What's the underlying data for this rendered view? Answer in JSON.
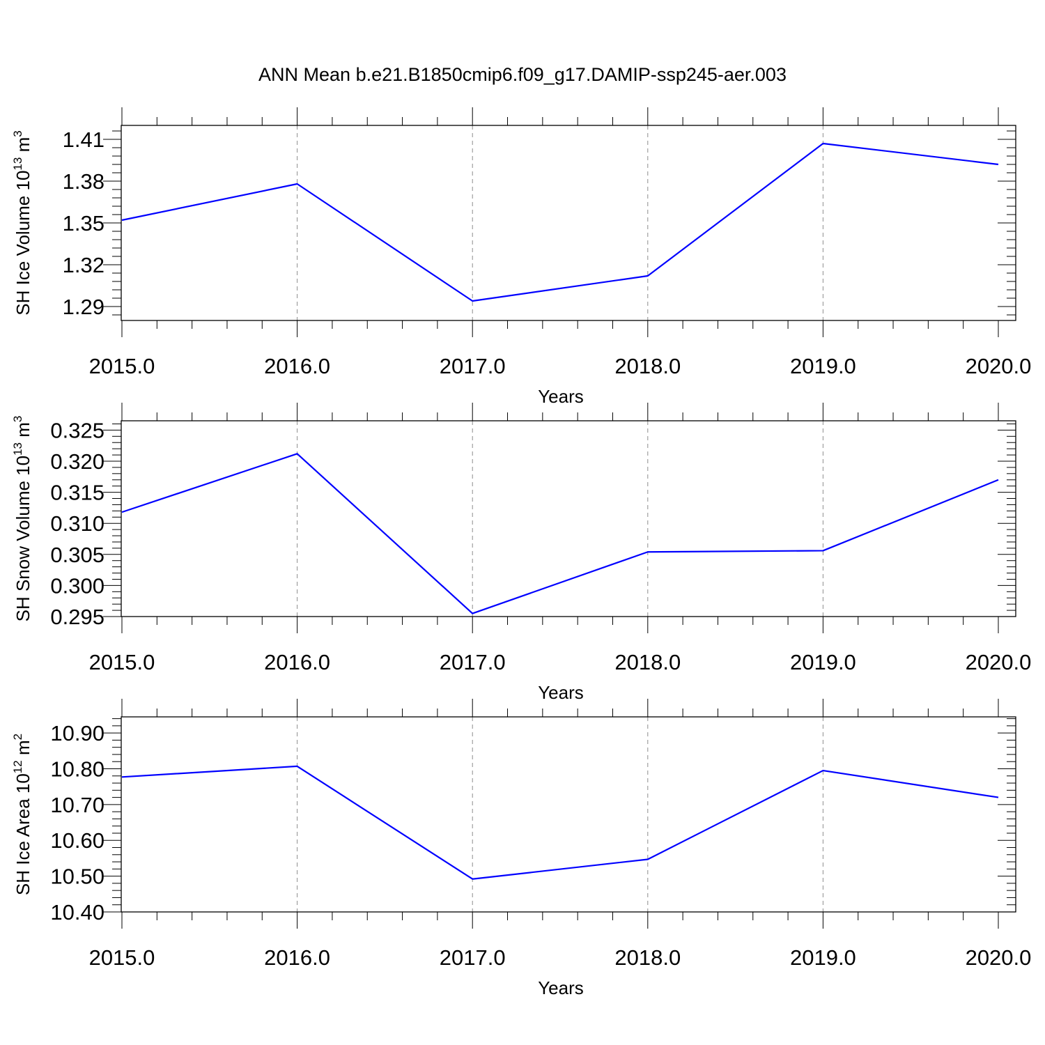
{
  "title": "ANN Mean b.e21.B1850cmip6.f09_g17.DAMIP-ssp245-aer.003",
  "colors": {
    "line": "#0000ff",
    "axis": "#000000",
    "grid": "#8c8c8c"
  },
  "chart_data": [
    {
      "type": "line",
      "title": "ANN Mean b.e21.B1850cmip6.f09_g17.DAMIP-ssp245-aer.003",
      "ylabel": {
        "text": "SH Ice Volume 10",
        "sup1": "13",
        "mid": " m",
        "sup2": "3"
      },
      "xlabel": "Years",
      "x": [
        2015,
        2016,
        2017,
        2018,
        2019,
        2020
      ],
      "series": [
        {
          "values": [
            1.352,
            1.378,
            1.294,
            1.312,
            1.407,
            1.392
          ]
        }
      ],
      "xlim": [
        2015,
        2020
      ],
      "ylim": [
        1.28,
        1.42
      ],
      "yticks": [
        1.29,
        1.32,
        1.35,
        1.38,
        1.41
      ],
      "ytick_labels": [
        "1.29",
        "1.32",
        "1.35",
        "1.38",
        "1.41"
      ],
      "xtick_labels": [
        "2015.0",
        "2016.0",
        "2017.0",
        "2018.0",
        "2019.0",
        "2020.0"
      ],
      "grid": "x-dashed"
    },
    {
      "type": "line",
      "ylabel": {
        "text": "SH Snow Volume 10",
        "sup1": "13",
        "mid": " m",
        "sup2": "3"
      },
      "xlabel": "Years",
      "x": [
        2015,
        2016,
        2017,
        2018,
        2019,
        2020
      ],
      "series": [
        {
          "values": [
            0.3118,
            0.3212,
            0.2955,
            0.3054,
            0.3056,
            0.317
          ]
        }
      ],
      "xlim": [
        2015,
        2020
      ],
      "ylim": [
        0.295,
        0.3265
      ],
      "yticks": [
        0.295,
        0.3,
        0.305,
        0.31,
        0.315,
        0.32,
        0.325
      ],
      "ytick_labels": [
        "0.295",
        "0.300",
        "0.305",
        "0.310",
        "0.315",
        "0.320",
        "0.325"
      ],
      "xtick_labels": [
        "2015.0",
        "2016.0",
        "2017.0",
        "2018.0",
        "2019.0",
        "2020.0"
      ],
      "grid": "x-dashed"
    },
    {
      "type": "line",
      "ylabel": {
        "text": "SH Ice Area 10",
        "sup1": "12",
        "mid": " m",
        "sup2": "2"
      },
      "xlabel": "Years",
      "x": [
        2015,
        2016,
        2017,
        2018,
        2019,
        2020
      ],
      "series": [
        {
          "values": [
            10.777,
            10.807,
            10.492,
            10.547,
            10.795,
            10.72
          ]
        }
      ],
      "xlim": [
        2015,
        2020
      ],
      "ylim": [
        10.4,
        10.945
      ],
      "yticks": [
        10.4,
        10.5,
        10.6,
        10.7,
        10.8,
        10.9
      ],
      "ytick_labels": [
        "10.40",
        "10.50",
        "10.60",
        "10.70",
        "10.80",
        "10.90"
      ],
      "xtick_labels": [
        "2015.0",
        "2016.0",
        "2017.0",
        "2018.0",
        "2019.0",
        "2020.0"
      ],
      "grid": "x-dashed"
    }
  ]
}
